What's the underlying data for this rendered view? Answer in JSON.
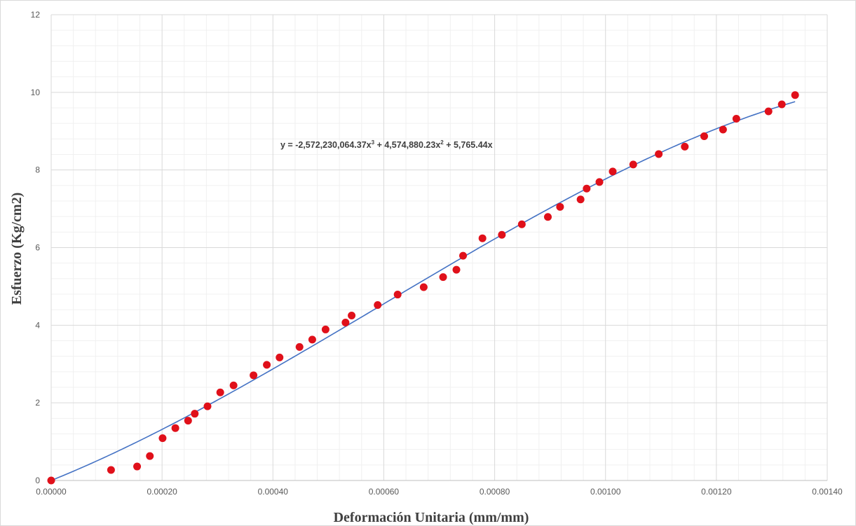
{
  "chart_data": {
    "type": "scatter",
    "title": "",
    "xlabel": "Deformación Unitaria (mm/mm)",
    "ylabel": "Esfuerzo (Kg/cm2)",
    "xlim": [
      0,
      0.0014
    ],
    "ylim": [
      0,
      12
    ],
    "x_ticks": [
      "0.00000",
      "0.00020",
      "0.00040",
      "0.00060",
      "0.00080",
      "0.00100",
      "0.00120",
      "0.00140"
    ],
    "x_tick_values": [
      0,
      0.0002,
      0.0004,
      0.0006,
      0.0008,
      0.001,
      0.0012,
      0.0014
    ],
    "y_ticks": [
      "0",
      "2",
      "4",
      "6",
      "8",
      "10",
      "12"
    ],
    "y_tick_values": [
      0,
      2,
      4,
      6,
      8,
      10,
      12
    ],
    "grid": true,
    "legend": "none",
    "series": [
      {
        "type": "scatter",
        "color": "#e0101a",
        "x": [
          0,
          0.000108,
          0.000155,
          0.000178,
          0.000201,
          0.000224,
          0.000247,
          0.000259,
          0.000282,
          0.000305,
          0.000329,
          0.000365,
          0.000389,
          0.000412,
          0.000448,
          0.000471,
          0.000495,
          0.000531,
          0.000542,
          0.000589,
          0.000625,
          0.000672,
          0.000707,
          0.000731,
          0.000743,
          0.000778,
          0.000813,
          0.000849,
          0.000896,
          0.000918,
          0.000955,
          0.000966,
          0.000989,
          0.001013,
          0.00105,
          0.001096,
          0.001143,
          0.001178,
          0.001212,
          0.001236,
          0.001294,
          0.001318,
          0.001342
        ],
        "y": [
          0,
          0.27,
          0.36,
          0.63,
          1.09,
          1.35,
          1.54,
          1.72,
          1.91,
          2.27,
          2.45,
          2.71,
          2.98,
          3.17,
          3.44,
          3.63,
          3.89,
          4.07,
          4.25,
          4.52,
          4.79,
          4.98,
          5.24,
          5.43,
          5.79,
          6.24,
          6.33,
          6.6,
          6.79,
          7.05,
          7.24,
          7.52,
          7.69,
          7.96,
          8.14,
          8.41,
          8.6,
          8.87,
          9.04,
          9.32,
          9.51,
          9.69,
          9.93
        ]
      },
      {
        "type": "line",
        "color": "#4472c4",
        "trendline": "polynomial",
        "x_start": 0,
        "x_end": 0.001342,
        "coefficients": [
          -2572230064.37,
          4574880.23,
          5765.44,
          0
        ]
      }
    ],
    "annotations": [
      {
        "text": "y = -2,572,230,064.37x",
        "sup1": "3",
        "mid": " + 4,574,880.23x",
        "sup2": "2",
        "tail": " + 5,765.44x"
      }
    ]
  }
}
